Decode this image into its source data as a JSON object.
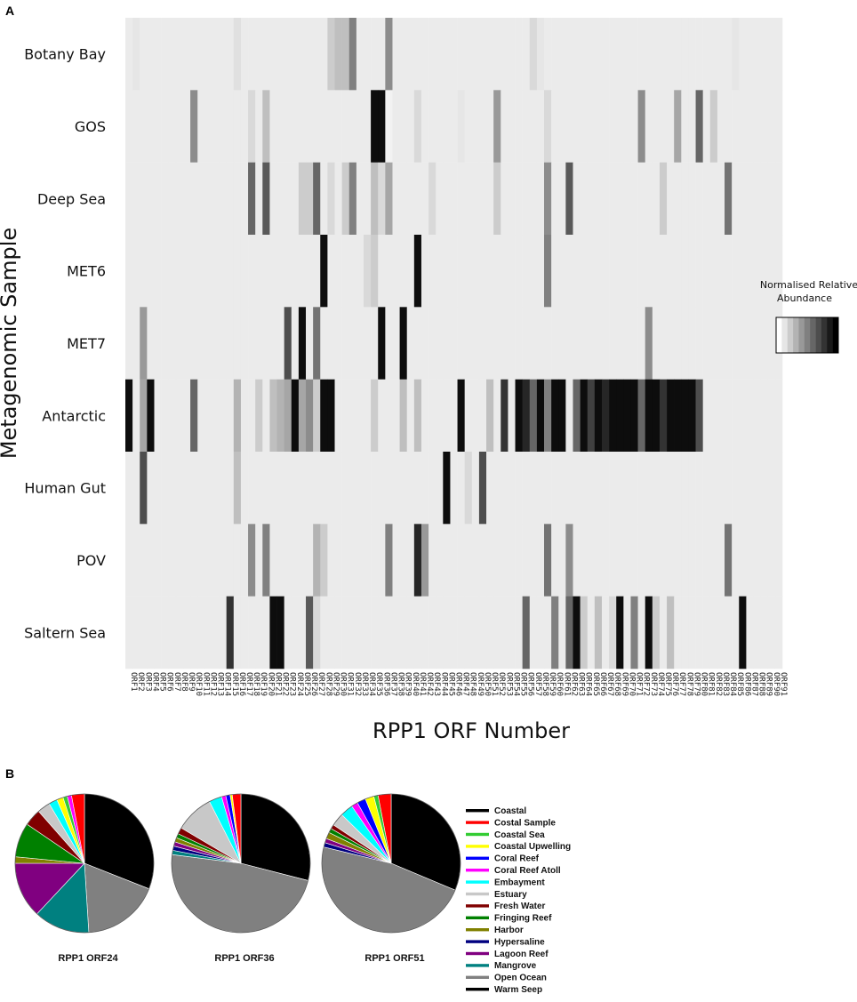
{
  "panel_a_letter": "A",
  "panel_b_letter": "B",
  "chart_data": [
    {
      "type": "heatmap",
      "xlabel": "RPP1 ORF Number",
      "ylabel": "Metagenomic Sample",
      "rows": [
        "Botany Bay",
        "GOS",
        "Deep Sea",
        "MET6",
        "MET7",
        "Antarctic",
        "Human Gut",
        "POV",
        "Saltern Sea"
      ],
      "columns": [
        "ORF1",
        "ORF2",
        "ORF3",
        "ORF4",
        "ORF5",
        "ORF6",
        "ORF7",
        "ORF8",
        "ORF9",
        "ORF10",
        "ORF11",
        "ORF12",
        "ORF13",
        "ORF14",
        "ORF15",
        "ORF16",
        "ORF17",
        "ORF18",
        "ORF19",
        "ORF20",
        "ORF21",
        "ORF22",
        "ORF23",
        "ORF24",
        "ORF25",
        "ORF26",
        "ORF27",
        "ORF28",
        "ORF29",
        "ORF30",
        "ORF31",
        "ORF32",
        "ORF33",
        "ORF34",
        "ORF35",
        "ORF36",
        "ORF37",
        "ORF38",
        "ORF39",
        "ORF40",
        "ORF41",
        "ORF42",
        "ORF43",
        "ORF44",
        "ORF45",
        "ORF46",
        "ORF47",
        "ORF48",
        "ORF49",
        "ORF50",
        "ORF51",
        "ORF52",
        "ORF53",
        "ORF54",
        "ORF55",
        "ORF56",
        "ORF57",
        "ORF58",
        "ORF59",
        "ORF60",
        "ORF61",
        "ORF62",
        "ORF63",
        "ORF64",
        "ORF65",
        "ORF66",
        "ORF67",
        "ORF68",
        "ORF69",
        "ORF70",
        "ORF71",
        "ORF72",
        "ORF73",
        "ORF74",
        "ORF75",
        "ORF76",
        "ORF77",
        "ORF78",
        "ORF79",
        "ORF80",
        "ORF81",
        "ORF82",
        "ORF83",
        "ORF84",
        "ORF85",
        "ORF86",
        "ORF87",
        "ORF88",
        "ORF89",
        "ORF90",
        "ORF91"
      ],
      "scale": "0 = absent (white) to 1 = highest (black)",
      "default_value": 0.08,
      "cells": [
        [
          0,
          1,
          0.1
        ],
        [
          0,
          15,
          0.12
        ],
        [
          0,
          28,
          0.2
        ],
        [
          0,
          29,
          0.25
        ],
        [
          0,
          30,
          0.25
        ],
        [
          0,
          31,
          0.5
        ],
        [
          0,
          36,
          0.45
        ],
        [
          0,
          56,
          0.15
        ],
        [
          0,
          57,
          0.1
        ],
        [
          0,
          84,
          0.1
        ],
        [
          1,
          9,
          0.45
        ],
        [
          1,
          17,
          0.15
        ],
        [
          1,
          19,
          0.25
        ],
        [
          1,
          34,
          0.95
        ],
        [
          1,
          35,
          0.95
        ],
        [
          1,
          36,
          0.05
        ],
        [
          1,
          40,
          0.15
        ],
        [
          1,
          46,
          0.1
        ],
        [
          1,
          51,
          0.4
        ],
        [
          1,
          58,
          0.15
        ],
        [
          1,
          71,
          0.45
        ],
        [
          1,
          76,
          0.35
        ],
        [
          1,
          79,
          0.6
        ],
        [
          1,
          81,
          0.2
        ],
        [
          2,
          17,
          0.6
        ],
        [
          2,
          19,
          0.65
        ],
        [
          2,
          24,
          0.2
        ],
        [
          2,
          25,
          0.2
        ],
        [
          2,
          26,
          0.6
        ],
        [
          2,
          28,
          0.15
        ],
        [
          2,
          30,
          0.2
        ],
        [
          2,
          31,
          0.5
        ],
        [
          2,
          34,
          0.25
        ],
        [
          2,
          35,
          0.15
        ],
        [
          2,
          36,
          0.35
        ],
        [
          2,
          42,
          0.15
        ],
        [
          2,
          51,
          0.2
        ],
        [
          2,
          58,
          0.45
        ],
        [
          2,
          61,
          0.65
        ],
        [
          2,
          74,
          0.2
        ],
        [
          2,
          83,
          0.55
        ],
        [
          3,
          27,
          0.95
        ],
        [
          3,
          33,
          0.15
        ],
        [
          3,
          34,
          0.2
        ],
        [
          3,
          40,
          0.95
        ],
        [
          3,
          58,
          0.5
        ],
        [
          4,
          2,
          0.4
        ],
        [
          4,
          22,
          0.7
        ],
        [
          4,
          24,
          0.95
        ],
        [
          4,
          26,
          0.55
        ],
        [
          4,
          35,
          0.95
        ],
        [
          4,
          38,
          0.95
        ],
        [
          4,
          72,
          0.45
        ],
        [
          5,
          0,
          0.95
        ],
        [
          5,
          2,
          0.35
        ],
        [
          5,
          3,
          0.95
        ],
        [
          5,
          9,
          0.6
        ],
        [
          5,
          15,
          0.3
        ],
        [
          5,
          18,
          0.2
        ],
        [
          5,
          20,
          0.25
        ],
        [
          5,
          21,
          0.3
        ],
        [
          5,
          22,
          0.35
        ],
        [
          5,
          23,
          0.95
        ],
        [
          5,
          24,
          0.35
        ],
        [
          5,
          25,
          0.45
        ],
        [
          5,
          26,
          0.2
        ],
        [
          5,
          27,
          0.95
        ],
        [
          5,
          28,
          0.95
        ],
        [
          5,
          34,
          0.2
        ],
        [
          5,
          38,
          0.25
        ],
        [
          5,
          40,
          0.25
        ],
        [
          5,
          46,
          0.95
        ],
        [
          5,
          50,
          0.25
        ],
        [
          5,
          52,
          0.8
        ],
        [
          5,
          54,
          0.95
        ],
        [
          5,
          55,
          0.85
        ],
        [
          5,
          56,
          0.6
        ],
        [
          5,
          57,
          0.95
        ],
        [
          5,
          58,
          0.5
        ],
        [
          5,
          59,
          0.95
        ],
        [
          5,
          60,
          0.95
        ],
        [
          5,
          62,
          0.6
        ],
        [
          5,
          63,
          0.95
        ],
        [
          5,
          64,
          0.75
        ],
        [
          5,
          65,
          0.95
        ],
        [
          5,
          66,
          0.85
        ],
        [
          5,
          67,
          0.95
        ],
        [
          5,
          68,
          0.95
        ],
        [
          5,
          69,
          0.95
        ],
        [
          5,
          70,
          0.95
        ],
        [
          5,
          71,
          0.6
        ],
        [
          5,
          72,
          0.95
        ],
        [
          5,
          73,
          0.95
        ],
        [
          5,
          74,
          0.8
        ],
        [
          5,
          75,
          0.95
        ],
        [
          5,
          76,
          0.95
        ],
        [
          5,
          77,
          0.95
        ],
        [
          5,
          78,
          0.95
        ],
        [
          5,
          79,
          0.7
        ],
        [
          6,
          2,
          0.7
        ],
        [
          6,
          15,
          0.25
        ],
        [
          6,
          44,
          0.95
        ],
        [
          6,
          47,
          0.15
        ],
        [
          6,
          49,
          0.7
        ],
        [
          7,
          17,
          0.45
        ],
        [
          7,
          19,
          0.5
        ],
        [
          7,
          26,
          0.3
        ],
        [
          7,
          27,
          0.2
        ],
        [
          7,
          36,
          0.5
        ],
        [
          7,
          40,
          0.85
        ],
        [
          7,
          41,
          0.4
        ],
        [
          7,
          58,
          0.55
        ],
        [
          7,
          61,
          0.45
        ],
        [
          7,
          83,
          0.55
        ],
        [
          8,
          14,
          0.8
        ],
        [
          8,
          20,
          0.95
        ],
        [
          8,
          21,
          0.95
        ],
        [
          8,
          25,
          0.65
        ],
        [
          8,
          26,
          0.15
        ],
        [
          8,
          55,
          0.6
        ],
        [
          8,
          59,
          0.5
        ],
        [
          8,
          61,
          0.6
        ],
        [
          8,
          62,
          0.95
        ],
        [
          8,
          63,
          0.2
        ],
        [
          8,
          65,
          0.25
        ],
        [
          8,
          67,
          0.15
        ],
        [
          8,
          68,
          0.95
        ],
        [
          8,
          70,
          0.5
        ],
        [
          8,
          72,
          0.95
        ],
        [
          8,
          73,
          0.2
        ],
        [
          8,
          75,
          0.25
        ],
        [
          8,
          85,
          0.95
        ]
      ],
      "legend": {
        "title": "Normalised Relative Abundance"
      }
    },
    {
      "type": "pie",
      "title": "RPP1 ORF24",
      "slices": [
        {
          "label": "Coastal",
          "value": 31
        },
        {
          "label": "Open Ocean",
          "value": 18
        },
        {
          "label": "Mangrove",
          "value": 13
        },
        {
          "label": "Lagoon Reef",
          "value": 13
        },
        {
          "label": "Harbor",
          "value": 1.5
        },
        {
          "label": "Fringing Reef",
          "value": 8
        },
        {
          "label": "Fresh Water",
          "value": 4
        },
        {
          "label": "Estuary",
          "value": 3
        },
        {
          "label": "Embayment",
          "value": 2
        },
        {
          "label": "Coastal Upwelling",
          "value": 1.5
        },
        {
          "label": "Coastal Sea",
          "value": 1
        },
        {
          "label": "Coral Reef Atoll",
          "value": 1
        },
        {
          "label": "Costal Sample",
          "value": 3
        }
      ]
    },
    {
      "type": "pie",
      "title": "RPP1 ORF36",
      "slices": [
        {
          "label": "Coastal",
          "value": 29
        },
        {
          "label": "Open Ocean",
          "value": 48
        },
        {
          "label": "Mangrove",
          "value": 1
        },
        {
          "label": "Hypersaline",
          "value": 1
        },
        {
          "label": "Lagoon Reef",
          "value": 1
        },
        {
          "label": "Harbor",
          "value": 1
        },
        {
          "label": "Fringing Reef",
          "value": 1
        },
        {
          "label": "Fresh Water",
          "value": 1.5
        },
        {
          "label": "Estuary",
          "value": 9
        },
        {
          "label": "Embayment",
          "value": 3
        },
        {
          "label": "Coral Reef Atoll",
          "value": 1
        },
        {
          "label": "Coral Reef",
          "value": 1
        },
        {
          "label": "Coastal Upwelling",
          "value": 0.5
        },
        {
          "label": "Costal Sample",
          "value": 2
        }
      ]
    },
    {
      "type": "pie",
      "title": "RPP1 ORF51",
      "slices": [
        {
          "label": "Coastal",
          "value": 31
        },
        {
          "label": "Open Ocean",
          "value": 47
        },
        {
          "label": "Hypersaline",
          "value": 1
        },
        {
          "label": "Lagoon Reef",
          "value": 1
        },
        {
          "label": "Harbor",
          "value": 1.5
        },
        {
          "label": "Fringing Reef",
          "value": 1
        },
        {
          "label": "Fresh Water",
          "value": 1
        },
        {
          "label": "Estuary",
          "value": 3
        },
        {
          "label": "Embayment",
          "value": 3
        },
        {
          "label": "Coral Reef Atoll",
          "value": 1.5
        },
        {
          "label": "Coral Reef",
          "value": 2
        },
        {
          "label": "Coastal Upwelling",
          "value": 2
        },
        {
          "label": "Coastal Sea",
          "value": 1
        },
        {
          "label": "Costal Sample",
          "value": 3
        }
      ]
    }
  ],
  "pie_legend": [
    {
      "label": "Coastal",
      "color": "#000000"
    },
    {
      "label": "Costal Sample",
      "color": "#ff0000"
    },
    {
      "label": "Coastal Sea",
      "color": "#33cc33"
    },
    {
      "label": "Coastal Upwelling",
      "color": "#ffff00"
    },
    {
      "label": "Coral Reef",
      "color": "#0000ff"
    },
    {
      "label": "Coral Reef Atoll",
      "color": "#ff00ff"
    },
    {
      "label": "Embayment",
      "color": "#00ffff"
    },
    {
      "label": "Estuary",
      "color": "#c8c8c8"
    },
    {
      "label": "Fresh Water",
      "color": "#800000"
    },
    {
      "label": "Fringing Reef",
      "color": "#008000"
    },
    {
      "label": "Harbor",
      "color": "#808000"
    },
    {
      "label": "Hypersaline",
      "color": "#000080"
    },
    {
      "label": "Lagoon Reef",
      "color": "#800080"
    },
    {
      "label": "Mangrove",
      "color": "#008080"
    },
    {
      "label": "Open Ocean",
      "color": "#808080"
    },
    {
      "label": "Warm Seep",
      "color": "#000000"
    }
  ]
}
